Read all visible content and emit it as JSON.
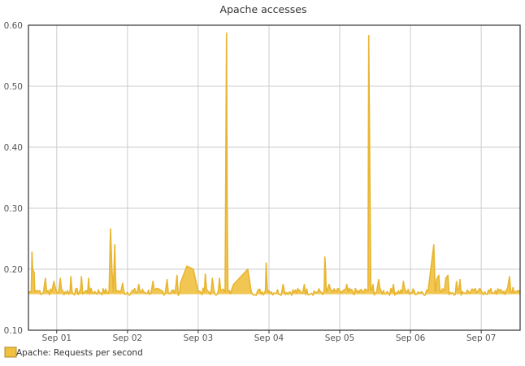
{
  "chart_data": {
    "type": "area",
    "title": "Apache accesses",
    "xlabel": "",
    "ylabel": "",
    "ylim": [
      0.1,
      0.6
    ],
    "yticks": [
      "0.10",
      "0.20",
      "0.30",
      "0.40",
      "0.50",
      "0.60"
    ],
    "ytick_values": [
      0.1,
      0.2,
      0.3,
      0.4,
      0.5,
      0.6
    ],
    "xlim": [
      0.6,
      7.55
    ],
    "xtick_labels": [
      "Sep 01",
      "Sep 02",
      "Sep 03",
      "Sep 04",
      "Sep 05",
      "Sep 06",
      "Sep 07"
    ],
    "xtick_values": [
      1,
      2,
      3,
      4,
      5,
      6,
      7
    ],
    "grid": true,
    "legend_position": "bottom-left",
    "baseline": 0.163,
    "series": [
      {
        "name": "Apache: Requests per second",
        "color": "#f0c040",
        "x": [
          0.6,
          0.64,
          0.65,
          0.66,
          0.68,
          0.69,
          0.72,
          0.76,
          0.84,
          0.88,
          0.96,
          0.99,
          1.05,
          1.2,
          1.35,
          1.45,
          1.74,
          1.76,
          1.78,
          1.8,
          1.82,
          1.83,
          1.84,
          1.86,
          1.93,
          2.16,
          2.36,
          2.56,
          2.7,
          2.75,
          2.84,
          2.93,
          3.0,
          3.1,
          3.2,
          3.3,
          3.38,
          3.4,
          3.41,
          3.42,
          3.44,
          3.5,
          3.7,
          3.75,
          3.95,
          3.96,
          3.97,
          3.98,
          4.0,
          4.2,
          4.5,
          4.78,
          4.79,
          4.8,
          4.81,
          4.82,
          4.85,
          5.0,
          5.1,
          5.4,
          5.41,
          5.43,
          5.44,
          5.45,
          5.47,
          5.55,
          5.76,
          5.9,
          6.25,
          6.33,
          6.34,
          6.35,
          6.36,
          6.37,
          6.4,
          6.48,
          6.5,
          6.53,
          6.65,
          6.7,
          6.9,
          6.96,
          7.05,
          7.2,
          7.4,
          7.45,
          7.52,
          7.55
        ],
        "y": [
          0.163,
          0.163,
          0.228,
          0.2,
          0.195,
          0.163,
          0.165,
          0.165,
          0.185,
          0.165,
          0.18,
          0.165,
          0.185,
          0.188,
          0.188,
          0.185,
          0.165,
          0.266,
          0.2,
          0.163,
          0.24,
          0.19,
          0.163,
          0.165,
          0.177,
          0.175,
          0.18,
          0.183,
          0.19,
          0.178,
          0.205,
          0.2,
          0.163,
          0.192,
          0.185,
          0.185,
          0.163,
          0.587,
          0.3,
          0.163,
          0.165,
          0.175,
          0.2,
          0.163,
          0.165,
          0.21,
          0.18,
          0.163,
          0.165,
          0.175,
          0.175,
          0.165,
          0.22,
          0.2,
          0.163,
          0.165,
          0.175,
          0.165,
          0.175,
          0.165,
          0.583,
          0.3,
          0.165,
          0.165,
          0.175,
          0.183,
          0.175,
          0.18,
          0.165,
          0.24,
          0.2,
          0.163,
          0.165,
          0.183,
          0.19,
          0.165,
          0.185,
          0.19,
          0.18,
          0.183,
          0.165,
          0.165,
          0.163,
          0.165,
          0.188,
          0.17,
          0.165,
          0.163
        ]
      }
    ]
  }
}
